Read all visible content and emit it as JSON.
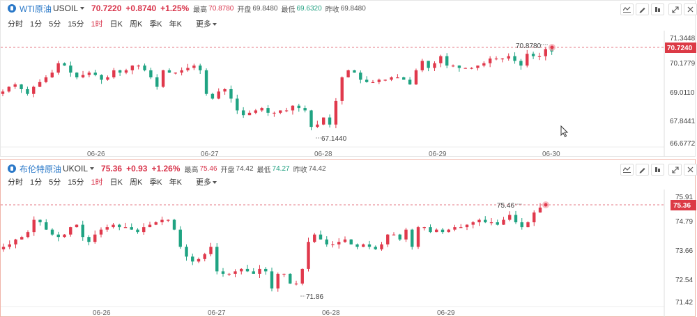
{
  "colors": {
    "up": "#e0394c",
    "down": "#1fa382",
    "accent": "#2a78c8",
    "last_price_tag": "#dc3a46"
  },
  "periods": [
    "分时",
    "1分",
    "5分",
    "15分",
    "1时",
    "日K",
    "周K",
    "季K",
    "年K",
    "更多"
  ],
  "active_period": "1时",
  "toolbar_icons": [
    "line-chart-icon",
    "draw-icon",
    "indicator-icon",
    "expand-icon",
    "close-icon"
  ],
  "wti": {
    "name": "WTI原油",
    "code": "USOIL",
    "price": "70.7220",
    "change": "+0.8740",
    "change_pct": "+1.25%",
    "high_label": "最高",
    "high": "70.8780",
    "open_label": "开盘",
    "open": "69.8480",
    "low_label": "最低",
    "low": "69.6320",
    "prev_label": "昨收",
    "prev": "69.8480",
    "y_ticks": [
      "71.3448",
      "70.1779",
      "69.0110",
      "67.8441",
      "66.6772"
    ],
    "last_tag": "70.7240",
    "max_annot": "70.8780",
    "min_annot": "67.1440",
    "x_labels": [
      "06-26",
      "06-27",
      "06-28",
      "06-29",
      "06-30"
    ]
  },
  "brent": {
    "name": "布伦特原油",
    "code": "UKOIL",
    "price": "75.36",
    "change": "+0.93",
    "change_pct": "+1.26%",
    "high_label": "最高",
    "high": "75.46",
    "open_label": "开盘",
    "open": "74.42",
    "low_label": "最低",
    "low": "74.27",
    "prev_label": "昨收",
    "prev": "74.42",
    "y_ticks": [
      "75.91",
      "74.79",
      "73.66",
      "72.54",
      "71.42"
    ],
    "last_tag": "75.36",
    "max_annot": "75.46",
    "min_annot": "71.86",
    "x_labels": [
      "06-26",
      "06-27",
      "06-28",
      "06-29"
    ]
  },
  "chart_data": [
    {
      "type": "candlestick",
      "series_name": "WTI原油 USOIL",
      "interval": "1时",
      "ylim": [
        66.6772,
        71.3448
      ],
      "y_ticks": [
        71.3448,
        70.1779,
        69.011,
        67.8441,
        66.6772
      ],
      "x_labels": [
        "06-26",
        "06-27",
        "06-28",
        "06-29",
        "06-30"
      ],
      "last": 70.724,
      "max": 70.878,
      "min": 67.144,
      "values": [
        69.0,
        69.2,
        69.3,
        69.1,
        68.9,
        69.2,
        69.4,
        69.6,
        69.8,
        70.2,
        70.1,
        69.8,
        69.6,
        69.7,
        69.8,
        69.7,
        69.5,
        69.6,
        69.9,
        69.8,
        69.9,
        70.1,
        70.1,
        69.9,
        69.6,
        69.2,
        69.9,
        69.8,
        69.8,
        69.9,
        70.0,
        70.1,
        69.9,
        68.9,
        68.7,
        69.0,
        69.1,
        68.7,
        68.2,
        68.0,
        68.1,
        68.2,
        68.3,
        68.1,
        68.1,
        68.2,
        68.2,
        68.4,
        68.3,
        68.2,
        67.5,
        67.6,
        67.9,
        67.6,
        68.6,
        69.6,
        69.9,
        69.8,
        69.5,
        69.4,
        69.4,
        69.5,
        69.5,
        69.6,
        69.6,
        69.5,
        69.3,
        69.9,
        70.3,
        70.0,
        70.2,
        70.5,
        70.1,
        70.1,
        70.0,
        70.0,
        70.0,
        70.1,
        70.2,
        70.4,
        70.4,
        70.4,
        70.5,
        70.3,
        70.1,
        70.6,
        70.5,
        70.5,
        70.8,
        70.7
      ]
    },
    {
      "type": "candlestick",
      "series_name": "布伦特原油 UKOIL",
      "interval": "1时",
      "ylim": [
        71.42,
        75.91
      ],
      "y_ticks": [
        75.91,
        74.79,
        73.66,
        72.54,
        71.42
      ],
      "x_labels": [
        "06-26",
        "06-27",
        "06-28",
        "06-29"
      ],
      "last": 75.36,
      "max": 75.46,
      "min": 71.86,
      "values": [
        73.8,
        73.9,
        74.1,
        74.2,
        74.4,
        74.9,
        74.8,
        74.5,
        74.3,
        74.2,
        74.3,
        74.6,
        74.7,
        74.2,
        74.0,
        74.3,
        74.5,
        74.6,
        74.7,
        74.6,
        74.6,
        74.5,
        74.4,
        74.6,
        74.7,
        74.8,
        74.9,
        74.9,
        74.5,
        73.8,
        73.4,
        73.2,
        73.3,
        73.5,
        73.8,
        72.8,
        72.7,
        72.7,
        72.8,
        72.9,
        72.8,
        72.7,
        72.9,
        72.8,
        72.1,
        72.7,
        72.7,
        72.3,
        72.3,
        72.9,
        74.0,
        74.3,
        74.1,
        73.9,
        73.9,
        74.0,
        74.1,
        73.9,
        73.8,
        73.9,
        73.8,
        73.7,
        73.9,
        74.3,
        74.3,
        74.1,
        74.5,
        73.8,
        74.6,
        74.6,
        74.4,
        74.5,
        74.4,
        74.5,
        74.6,
        74.6,
        74.7,
        74.8,
        74.9,
        74.8,
        74.8,
        74.7,
        74.9,
        75.1,
        74.8,
        74.6,
        74.8,
        75.2,
        75.4
      ]
    }
  ]
}
